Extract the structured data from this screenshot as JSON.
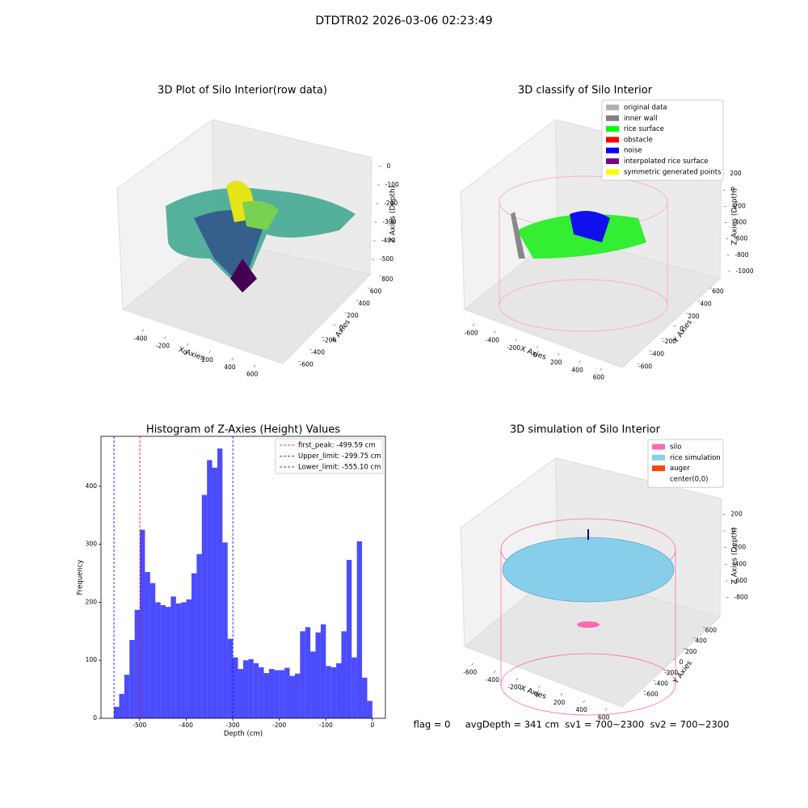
{
  "title": "DTDTR02 2026-03-06 02:23:49",
  "footer": "flag = 0     avgDepth = 341 cm  sv1 = 700~2300  sv2 = 700~2300",
  "chart_data": [
    {
      "type": "scatter3d",
      "title": "3D Plot of Silo Interior(row data)",
      "xlabel": "X Axies",
      "ylabel": "Y Axies",
      "zlabel": "Z Axies (Depth)",
      "xlim": [
        -550,
        700
      ],
      "xticks": [
        -400,
        -200,
        0,
        200,
        400,
        600
      ],
      "ylim": [
        -700,
        850
      ],
      "yticks": [
        -600,
        -400,
        -200,
        0,
        200,
        400,
        600,
        800
      ],
      "zlim": [
        -560,
        30
      ],
      "zticks": [
        0,
        -100,
        -200,
        -300,
        -400,
        -500
      ]
    },
    {
      "type": "scatter3d",
      "title": "3D classify of Silo Interior",
      "xlim": [
        -700,
        700
      ],
      "xticks": [
        -600,
        -400,
        -200,
        0,
        200,
        400,
        600
      ],
      "ylim": [
        -700,
        700
      ],
      "yticks": [
        -600,
        -400,
        -200,
        0,
        200,
        400,
        600
      ],
      "zlim": [
        -1050,
        250
      ],
      "zticks": [
        200,
        0,
        -200,
        -400,
        -600,
        -800,
        -1000
      ],
      "xlabel": "X Axies",
      "ylabel": "Y Axies",
      "zlabel": "Z Axies (Depth)",
      "legend_loc": "upper right",
      "legend": [
        {
          "name": "original data",
          "color": "#b0b0b0"
        },
        {
          "name": "inner wall",
          "color": "#808080"
        },
        {
          "name": "rice surface",
          "color": "#00ff00"
        },
        {
          "name": "obstacle",
          "color": "#ff0000"
        },
        {
          "name": "noise",
          "color": "#0000ff"
        },
        {
          "name": "interpolated rice surface",
          "color": "#800080"
        },
        {
          "name": "symmetric generated points",
          "color": "#ffff00"
        }
      ]
    },
    {
      "type": "histogram",
      "title": "Histogram of Z-Axies (Height) Values",
      "xlabel": "Depth (cm)",
      "ylabel": "Frequency",
      "color": "#0000ff",
      "alpha": 0.7,
      "bins": [
        -555.1,
        -544.0,
        -532.9,
        -521.8,
        -510.7,
        -499.6,
        -488.5,
        -477.4,
        -466.3,
        -455.2,
        -444.1,
        -433.0,
        -421.9,
        -410.8,
        -399.7,
        -388.6,
        -377.5,
        -366.4,
        -355.3,
        -344.2,
        -333.1,
        -322.0,
        -310.9,
        -299.8,
        -288.7,
        -277.6,
        -266.5,
        -255.4,
        -244.3,
        -233.1,
        -222.0,
        -210.9,
        -199.8,
        -188.7,
        -177.6,
        -166.5,
        -155.4,
        -144.3,
        -133.2,
        -122.1,
        -111.0,
        -99.9,
        -88.8,
        -77.7,
        -66.6,
        -55.5,
        -44.4,
        -33.3,
        -22.2,
        -11.1,
        0
      ],
      "counts": [
        20,
        42,
        75,
        135,
        187,
        325,
        252,
        233,
        200,
        195,
        192,
        210,
        198,
        200,
        205,
        250,
        283,
        385,
        445,
        432,
        465,
        303,
        137,
        105,
        85,
        100,
        102,
        95,
        88,
        78,
        85,
        83,
        83,
        87,
        73,
        77,
        150,
        157,
        115,
        148,
        162,
        90,
        88,
        95,
        150,
        273,
        105,
        305,
        70,
        30
      ],
      "xlim": [
        -583,
        28
      ],
      "xticks": [
        -500,
        -400,
        -300,
        -200,
        -100,
        0
      ],
      "ylim": [
        0,
        486
      ],
      "yticks": [
        0,
        100,
        200,
        300,
        400
      ],
      "legend_loc": "upper right",
      "vlines": [
        {
          "label": "first_peak: -499.59 cm",
          "value": -499.59,
          "color": "#ff0000"
        },
        {
          "label": "Upper_limit: -299.75 cm",
          "value": -299.75,
          "color": "#0000ff"
        },
        {
          "label": "Lower_limit: -555.10 cm",
          "value": -555.1,
          "color": "#0000ff"
        }
      ]
    },
    {
      "type": "surface3d",
      "title": "3D simulation of Silo Interior",
      "xlabel": "X Axies",
      "ylabel": "Y Axies",
      "zlabel": "Z Axies (Depth)",
      "xlim": [
        -700,
        700
      ],
      "xticks": [
        -600,
        -400,
        -200,
        0,
        200,
        400,
        600
      ],
      "ylim": [
        -700,
        700
      ],
      "yticks": [
        -600,
        -400,
        -200,
        0,
        200,
        400,
        600
      ],
      "zlim": [
        -900,
        300
      ],
      "zticks": [
        200,
        0,
        -200,
        -400,
        -600,
        -800
      ],
      "legend_loc": "upper right",
      "legend": [
        {
          "name": "silo",
          "color": "#ff69b4"
        },
        {
          "name": "rice simulation",
          "color": "#87ceeb"
        },
        {
          "name": "auger",
          "color": "#ff4500"
        },
        {
          "name": "center(0,0)",
          "color": "#ffffff"
        }
      ]
    }
  ]
}
